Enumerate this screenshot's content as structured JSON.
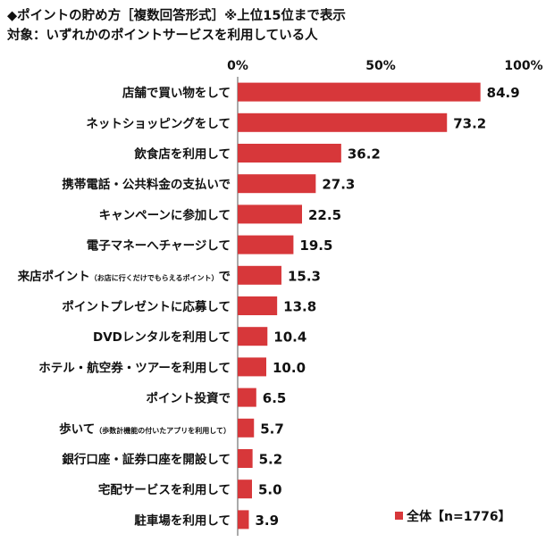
{
  "header": {
    "title": "◆ポイントの貯め方［複数回答形式］※上位15位まで表示",
    "subtitle": "対象：いずれかのポイントサービスを利用している人"
  },
  "chart_data": {
    "type": "bar",
    "orientation": "horizontal",
    "categories": [
      "店舗で買い物をして",
      "ネットショッピングをして",
      "飲食店を利用して",
      "携帯電話・公共料金の支払いで",
      "キャンペーンに参加して",
      "電子マネーへチャージして",
      "来店ポイント（お店に行くだけでもらえるポイント）で",
      "ポイントプレゼントに応募して",
      "DVDレンタルを利用して",
      "ホテル・航空券・ツアーを利用して",
      "ポイント投資で",
      "歩いて（歩数計機能の付いたアプリを利用して）",
      "銀行口座・証券口座を開設して",
      "宅配サービスを利用して",
      "駐車場を利用して"
    ],
    "category_labels": [
      {
        "main": "店舗で買い物をして",
        "note": ""
      },
      {
        "main": "ネットショッピングをして",
        "note": ""
      },
      {
        "main": "飲食店を利用して",
        "note": ""
      },
      {
        "main": "携帯電話・公共料金の支払いで",
        "note": ""
      },
      {
        "main": "キャンペーンに参加して",
        "note": ""
      },
      {
        "main": "電子マネーへチャージして",
        "note": ""
      },
      {
        "main": "来店ポイント",
        "note": "（お店に行くだけでもらえるポイント）",
        "tail": "で"
      },
      {
        "main": "ポイントプレゼントに応募して",
        "note": ""
      },
      {
        "main": "DVDレンタルを利用して",
        "note": ""
      },
      {
        "main": "ホテル・航空券・ツアーを利用して",
        "note": ""
      },
      {
        "main": "ポイント投資で",
        "note": ""
      },
      {
        "main": "歩いて",
        "note": "（歩数計機能の付いたアプリを利用して）",
        "tail": ""
      },
      {
        "main": "銀行口座・証券口座を開設して",
        "note": ""
      },
      {
        "main": "宅配サービスを利用して",
        "note": ""
      },
      {
        "main": "駐車場を利用して",
        "note": ""
      }
    ],
    "series": [
      {
        "name": "全体【n=1776】",
        "values": [
          84.9,
          73.2,
          36.2,
          27.3,
          22.5,
          19.5,
          15.3,
          13.8,
          10.4,
          10.0,
          6.5,
          5.7,
          5.2,
          5.0,
          3.9
        ],
        "value_labels": [
          "84.9",
          "73.2",
          "36.2",
          "27.3",
          "22.5",
          "19.5",
          "15.3",
          "13.8",
          "10.4",
          "10.0",
          "6.5",
          "5.7",
          "5.2",
          "5.0",
          "3.9"
        ]
      }
    ],
    "xlim": [
      0,
      100
    ],
    "xticks": [
      0,
      50,
      100
    ],
    "xtick_labels": [
      "0%",
      "50%",
      "100%"
    ],
    "grid": false,
    "legend": {
      "position": "bottom-right",
      "marker": "■",
      "label": "全体【n=1776】"
    },
    "colors": {
      "bar": "#d7373a",
      "axis": "#555555",
      "text": "#111111"
    }
  }
}
